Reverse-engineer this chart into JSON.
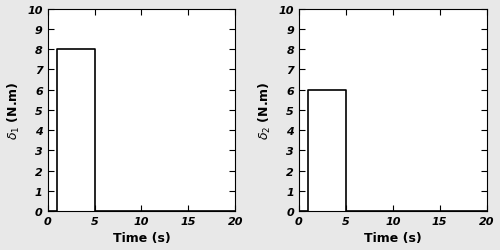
{
  "subplot1": {
    "ylabel": "$\\delta_1$ (N.m)",
    "xlabel": "Time (s)",
    "step_start": 1,
    "step_end": 5,
    "step_value": 8,
    "xlim": [
      0,
      20
    ],
    "ylim": [
      0,
      10
    ],
    "xticks": [
      0,
      5,
      10,
      15,
      20
    ],
    "yticks": [
      0,
      1,
      2,
      3,
      4,
      5,
      6,
      7,
      8,
      9,
      10
    ]
  },
  "subplot2": {
    "ylabel": "$\\delta_2$ (N.m)",
    "xlabel": "Time (s)",
    "step_start": 1,
    "step_end": 5,
    "step_value": 6,
    "xlim": [
      0,
      20
    ],
    "ylim": [
      0,
      10
    ],
    "xticks": [
      0,
      5,
      10,
      15,
      20
    ],
    "yticks": [
      0,
      1,
      2,
      3,
      4,
      5,
      6,
      7,
      8,
      9,
      10
    ]
  },
  "fig_facecolor": "#e8e8e8",
  "ax_facecolor": "#ffffff",
  "line_color": "#000000",
  "line_width": 1.2,
  "tick_labelsize": 8,
  "label_fontsize": 9,
  "label_fontweight": "bold"
}
